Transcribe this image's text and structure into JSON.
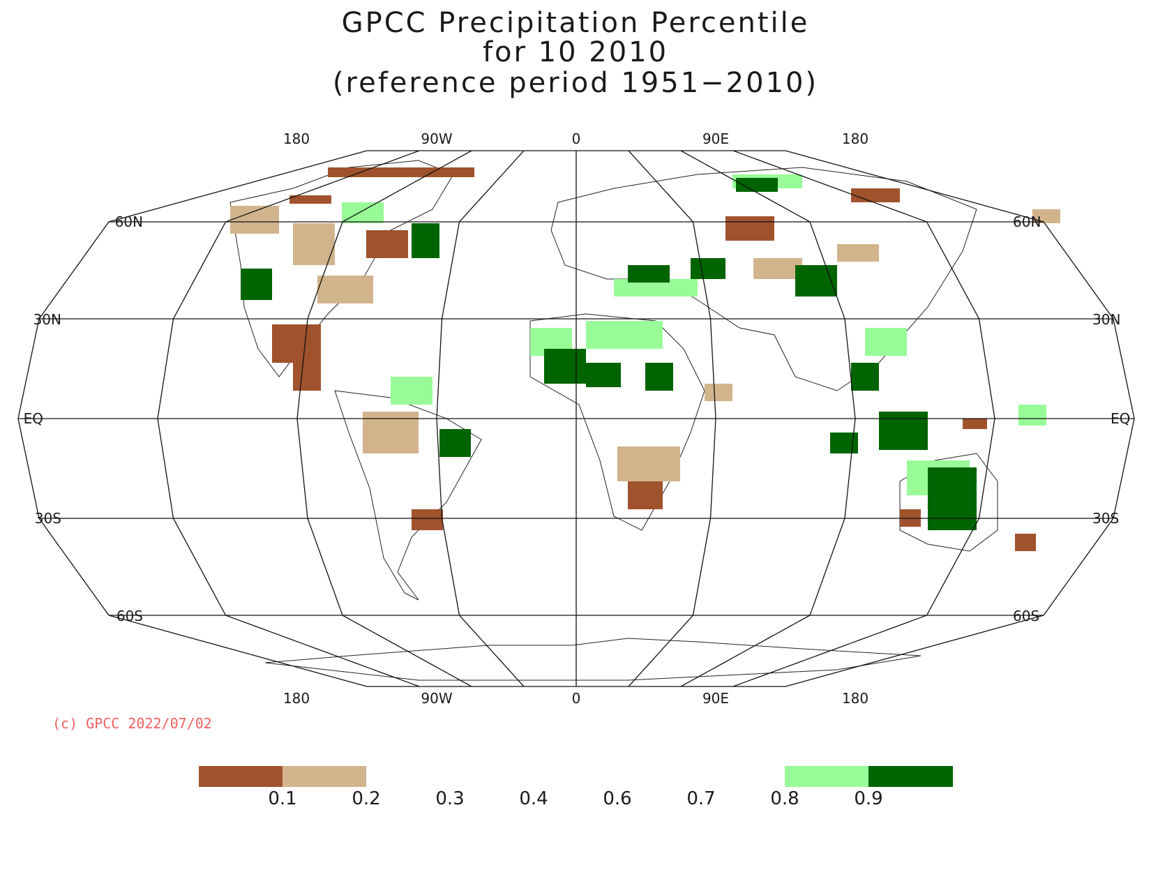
{
  "title": {
    "line1": "GPCC Precipitation Percentile",
    "line2": "for 10 2010",
    "line3": "(reference period 1951−2010)"
  },
  "map": {
    "projection": "robinson",
    "top_lon_labels": [
      "180",
      "90W",
      "0",
      "90E",
      "180"
    ],
    "bottom_lon_labels": [
      "180",
      "90W",
      "0",
      "90E",
      "180"
    ],
    "left_lat_labels": [
      "60N",
      "30N",
      "EQ",
      "30S",
      "60S"
    ],
    "right_lat_labels": [
      "60N",
      "30N",
      "EQ",
      "30S",
      "60S"
    ]
  },
  "copyright": "(c) GPCC 2022/07/02",
  "legend": {
    "tick_labels": [
      "0.1",
      "0.2",
      "0.3",
      "0.4",
      "0.6",
      "0.7",
      "0.8",
      "0.9"
    ],
    "colors": {
      "very_dry": "#a0522d",
      "dry": "#d2b48c",
      "wet": "#98fb98",
      "very_wet": "#006400"
    },
    "classes": [
      {
        "range": "< 0.1",
        "color_key": "very_dry"
      },
      {
        "range": "0.1 - 0.2",
        "color_key": "dry"
      },
      {
        "range": "0.8 - 0.9",
        "color_key": "wet"
      },
      {
        "range": "> 0.9",
        "color_key": "very_wet"
      }
    ]
  }
}
